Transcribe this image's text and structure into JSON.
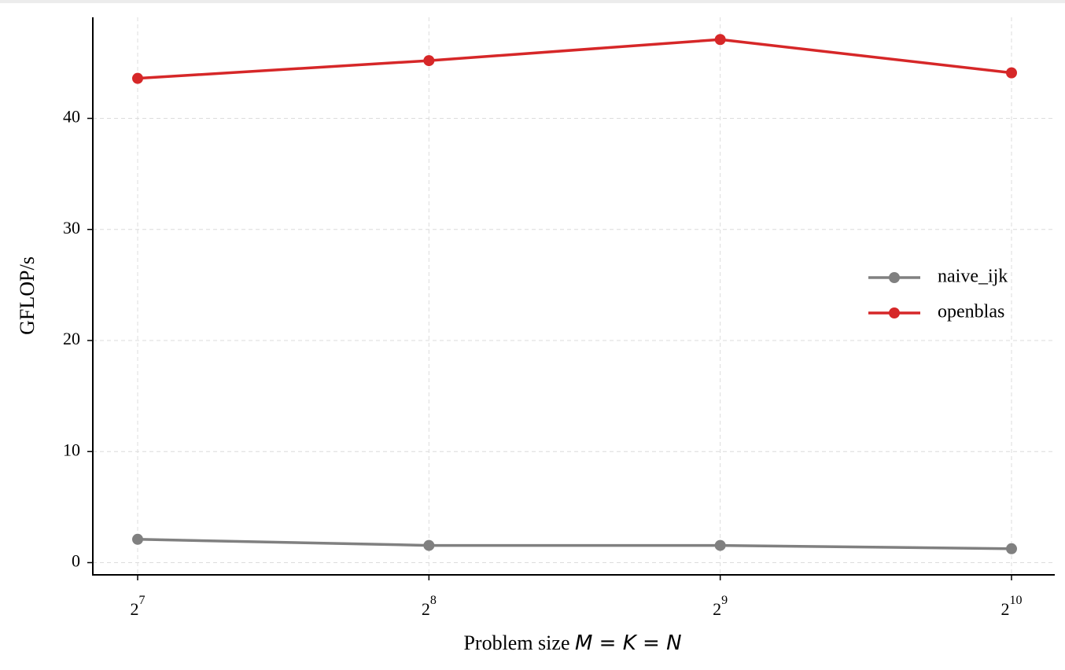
{
  "chart_data": {
    "type": "line",
    "x": [
      128,
      256,
      512,
      1024
    ],
    "x_scale": "log2",
    "x_tick_labels": [
      {
        "base": "2",
        "exp": "7"
      },
      {
        "base": "2",
        "exp": "8"
      },
      {
        "base": "2",
        "exp": "9"
      },
      {
        "base": "2",
        "exp": "10"
      }
    ],
    "xlabel_text": "Problem size ",
    "xlabel_math": "M = K = N",
    "ylabel": "GFLOP/s",
    "ylim": [
      -1.1,
      49.1
    ],
    "yticks": [
      0,
      10,
      20,
      30,
      40
    ],
    "grid": true,
    "legend_placement": "right",
    "series": [
      {
        "name": "naive_ijk",
        "color": "#808080",
        "values": [
          2.1,
          1.55,
          1.55,
          1.25
        ]
      },
      {
        "name": "openblas",
        "color": "#d62728",
        "values": [
          43.6,
          45.2,
          47.1,
          44.1
        ]
      }
    ]
  }
}
